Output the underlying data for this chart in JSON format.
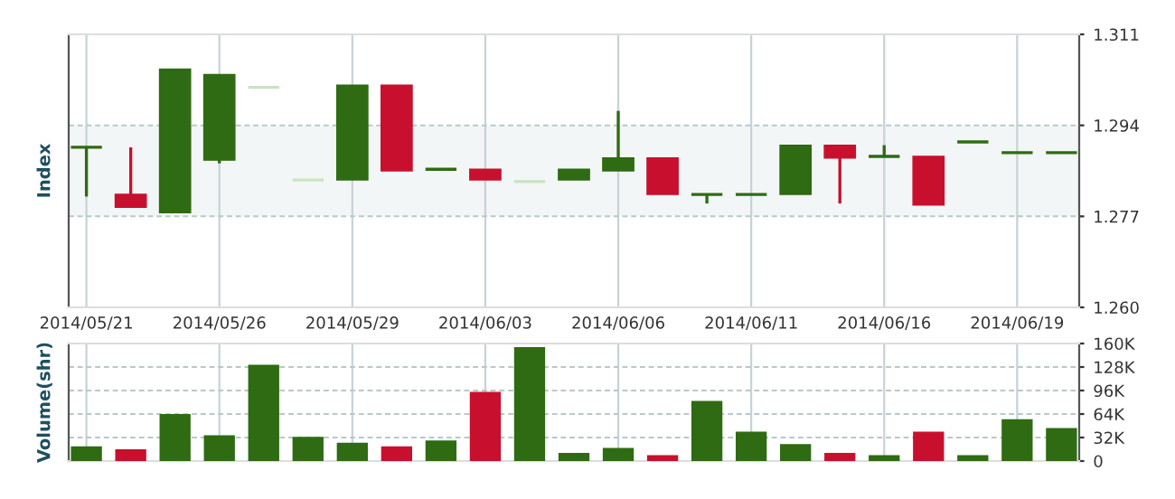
{
  "chart_data": [
    {
      "type": "candlestick",
      "ylabel": "Index",
      "categories": [
        "2014/05/21",
        null,
        null,
        "2014/05/26",
        null,
        null,
        "2014/05/29",
        null,
        null,
        "2014/06/03",
        null,
        null,
        "2014/06/06",
        null,
        null,
        "2014/06/11",
        null,
        null,
        "2014/06/16",
        null,
        null,
        "2014/06/19",
        null
      ],
      "ohlc": [
        [
          1.2899,
          1.2899,
          1.2807,
          1.2899
        ],
        [
          1.2811,
          1.2899,
          1.2787,
          1.2787
        ],
        [
          1.2777,
          1.3045,
          1.2777,
          1.3045
        ],
        [
          1.2875,
          1.3035,
          1.2869,
          1.3035
        ],
        [
          1.3011,
          1.3011,
          1.3011,
          1.3011
        ],
        [
          1.2838,
          1.2838,
          1.2838,
          1.2838
        ],
        [
          1.2838,
          1.3015,
          1.2838,
          1.3015
        ],
        [
          1.3015,
          1.3015,
          1.2855,
          1.2855
        ],
        [
          1.2858,
          1.2858,
          1.2858,
          1.2858
        ],
        [
          1.2858,
          1.2858,
          1.2838,
          1.2838
        ],
        [
          1.2835,
          1.2835,
          1.2835,
          1.2835
        ],
        [
          1.2838,
          1.2858,
          1.2838,
          1.2858
        ],
        [
          1.2855,
          1.2967,
          1.2855,
          1.2879
        ],
        [
          1.2879,
          1.2879,
          1.2811,
          1.2811
        ],
        [
          1.2811,
          1.2811,
          1.2794,
          1.2811
        ],
        [
          1.2811,
          1.2811,
          1.2811,
          1.2811
        ],
        [
          1.2811,
          1.2903,
          1.2811,
          1.2903
        ],
        [
          1.2903,
          1.2903,
          1.2794,
          1.2879
        ],
        [
          1.2882,
          1.2903,
          1.2882,
          1.2882
        ],
        [
          1.2882,
          1.2882,
          1.2791,
          1.2791
        ],
        [
          1.2909,
          1.2909,
          1.2909,
          1.2909
        ],
        [
          1.2889,
          1.2889,
          1.2889,
          1.2889
        ],
        [
          1.2889,
          1.2889,
          1.2889,
          1.2889
        ]
      ],
      "colors": [
        "#2e6b12",
        "#c8102e",
        "#2e6b12",
        "#2e6b12",
        "#c9e4c0",
        "#c9e4c0",
        "#2e6b12",
        "#c8102e",
        "#2e6b12",
        "#c8102e",
        "#c9e4c0",
        "#2e6b12",
        "#2e6b12",
        "#c8102e",
        "#2e6b12",
        "#2e6b12",
        "#2e6b12",
        "#c8102e",
        "#2e6b12",
        "#c8102e",
        "#2e6b12",
        "#2e6b12",
        "#2e6b12"
      ],
      "ylim": [
        1.26,
        1.311
      ],
      "yticks": [
        {
          "value": 1.26,
          "label": "1.260"
        },
        1.277,
        1.294,
        1.311
      ],
      "bands": [
        {
          "axis": "y",
          "from": 1.277,
          "to": 1.294,
          "color": "#f3f6f6"
        }
      ],
      "grid": true
    },
    {
      "type": "bar",
      "ylabel": "Volume(shr)",
      "categories": [
        "2014/05/21",
        null,
        null,
        "2014/05/26",
        null,
        null,
        "2014/05/29",
        null,
        null,
        "2014/06/03",
        null,
        null,
        "2014/06/06",
        null,
        null,
        "2014/06/11",
        null,
        null,
        "2014/06/16",
        null,
        null,
        "2014/06/19",
        null
      ],
      "values": [
        20000,
        16000,
        64000,
        35000,
        131000,
        33000,
        25000,
        20000,
        28000,
        94000,
        155000,
        11000,
        18000,
        8000,
        82000,
        40000,
        23000,
        11000,
        8000,
        40000,
        8000,
        57000,
        45000
      ],
      "colors": [
        "#2e6b12",
        "#c8102e",
        "#2e6b12",
        "#2e6b12",
        "#2e6b12",
        "#2e6b12",
        "#2e6b12",
        "#c8102e",
        "#2e6b12",
        "#c8102e",
        "#2e6b12",
        "#2e6b12",
        "#2e6b12",
        "#c8102e",
        "#2e6b12",
        "#2e6b12",
        "#2e6b12",
        "#c8102e",
        "#2e6b12",
        "#c8102e",
        "#2e6b12",
        "#2e6b12",
        "#2e6b12"
      ],
      "ylim": [
        0,
        160000
      ],
      "yticks": [
        0,
        {
          "value": 32000,
          "label": "32K"
        },
        {
          "value": 64000,
          "label": "64K"
        },
        {
          "value": 96000,
          "label": "96K"
        },
        {
          "value": 128000,
          "label": "128K"
        },
        {
          "value": 160000,
          "label": "160K"
        }
      ],
      "tick_labels": "y",
      "grid": true
    }
  ]
}
